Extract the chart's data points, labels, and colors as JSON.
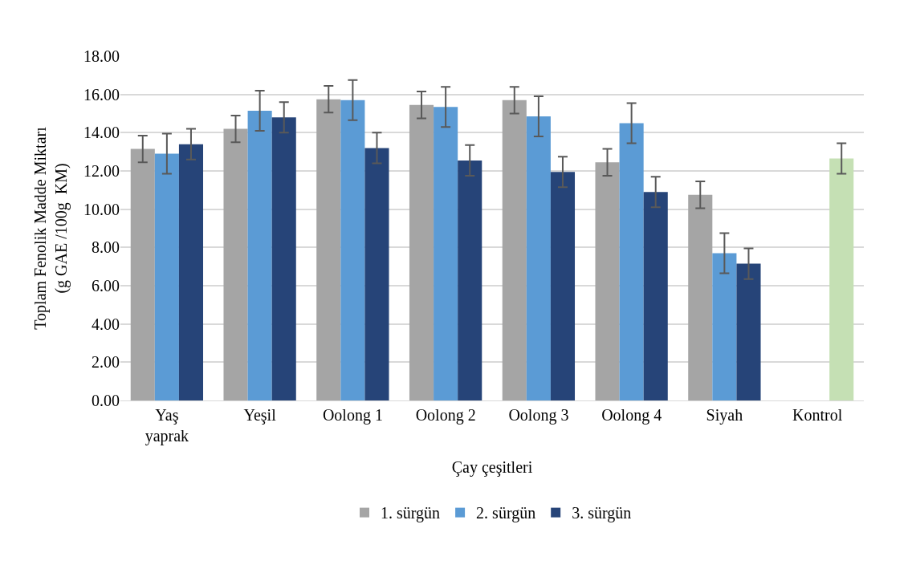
{
  "chart_data": {
    "type": "bar",
    "xlabel": "Çay çeşitleri",
    "ylabel": "Toplam Fenolik Madde Miktarı\n(g GAE /100g  KM)",
    "categories": [
      "Yaş\nyaprak",
      "Yeşil",
      "Oolong 1",
      "Oolong 2",
      "Oolong 3",
      "Oolong 4",
      "Siyah",
      "Kontrol"
    ],
    "ylim": [
      0,
      18
    ],
    "yticks": [
      {
        "value": 0,
        "label": "0.00"
      },
      {
        "value": 2,
        "label": "2.00"
      },
      {
        "value": 4,
        "label": "4.00"
      },
      {
        "value": 6,
        "label": "6.00"
      },
      {
        "value": 8,
        "label": "8.00"
      },
      {
        "value": 10,
        "label": "10.00"
      },
      {
        "value": 12,
        "label": "12.00"
      },
      {
        "value": 14,
        "label": "14.00"
      },
      {
        "value": 16,
        "label": "16.00"
      },
      {
        "value": 18,
        "label": "18.00"
      }
    ],
    "grid": "y",
    "legend": "bottom",
    "series": [
      {
        "name": "1. sürgün",
        "color": "#a5a5a5",
        "values": [
          13.15,
          14.2,
          15.75,
          15.45,
          15.7,
          12.45,
          10.75,
          null
        ],
        "errors": [
          0.7,
          0.7,
          0.7,
          0.7,
          0.7,
          0.7,
          0.7,
          null
        ]
      },
      {
        "name": "2. sürgün",
        "color": "#5b9bd5",
        "values": [
          12.9,
          15.15,
          15.7,
          15.35,
          14.85,
          14.5,
          7.7,
          null
        ],
        "errors": [
          1.05,
          1.05,
          1.05,
          1.05,
          1.05,
          1.05,
          1.05,
          null
        ]
      },
      {
        "name": "3. sürgün",
        "color": "#264478",
        "colors": [
          "#264478",
          "#264478",
          "#264478",
          "#264478",
          "#264478",
          "#264478",
          "#264478",
          "#c5e0b4"
        ],
        "values": [
          13.4,
          14.8,
          13.2,
          12.55,
          11.95,
          10.9,
          7.15,
          12.65
        ],
        "errors": [
          0.8,
          0.8,
          0.8,
          0.8,
          0.8,
          0.8,
          0.8,
          0.8
        ]
      }
    ]
  }
}
